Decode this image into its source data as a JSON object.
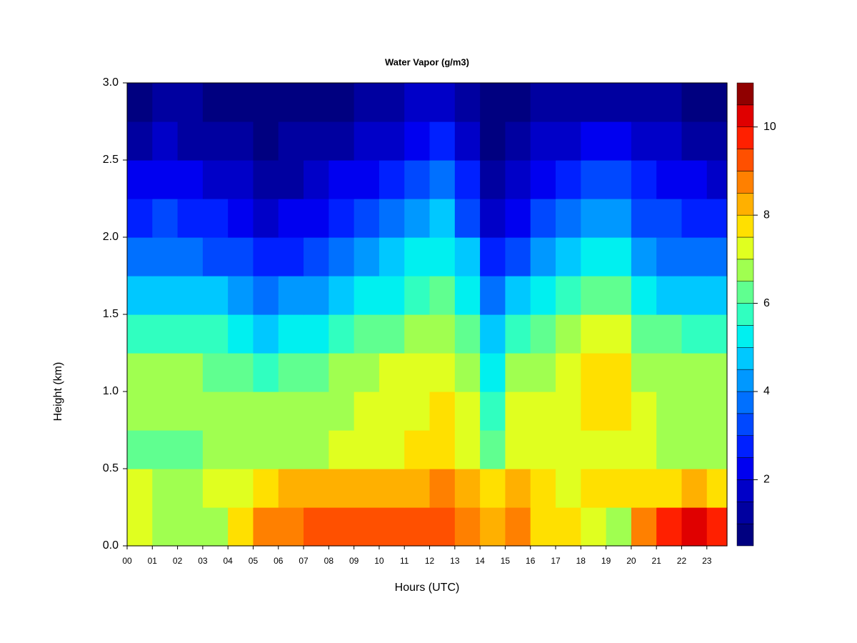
{
  "chart_data": {
    "type": "heatmap",
    "title": "Water Vapor (g/m3)",
    "x_label": "Hours (UTC)",
    "y_label": "Height (km)",
    "x": [
      0,
      1,
      2,
      3,
      4,
      5,
      6,
      7,
      8,
      9,
      10,
      11,
      12,
      13,
      14,
      15,
      16,
      17,
      18,
      19,
      20,
      21,
      22,
      23
    ],
    "y": [
      0,
      0.25,
      0.5,
      0.75,
      1,
      1.25,
      1.5,
      1.75,
      2,
      2.25,
      2.5,
      2.75
    ],
    "z": [
      [
        7.2,
        6.8,
        6.5,
        6.8,
        7.8,
        8.5,
        8.7,
        9.0,
        9.0,
        9.0,
        9.0,
        9.0,
        9.0,
        8.8,
        8.3,
        8.5,
        7.8,
        7.5,
        7.2,
        6.5,
        8.8,
        9.5,
        10.2,
        9.5
      ],
      [
        7.0,
        6.9,
        6.9,
        7.0,
        7.3,
        7.8,
        8.0,
        8.2,
        8.2,
        8.3,
        8.3,
        8.4,
        8.5,
        8.2,
        7.5,
        8.0,
        7.5,
        7.4,
        7.5,
        7.5,
        7.5,
        7.8,
        8.0,
        7.8
      ],
      [
        6.3,
        6.2,
        6.3,
        6.5,
        6.6,
        6.6,
        6.8,
        6.9,
        7.0,
        7.2,
        7.3,
        7.5,
        7.6,
        7.4,
        6.0,
        7.2,
        7.2,
        7.0,
        7.1,
        7.3,
        7.0,
        6.8,
        6.8,
        6.7
      ],
      [
        6.6,
        6.7,
        6.7,
        6.7,
        6.6,
        6.5,
        6.6,
        6.8,
        6.9,
        7.1,
        7.2,
        7.4,
        7.5,
        7.2,
        5.8,
        7.0,
        7.1,
        7.3,
        7.6,
        7.7,
        7.0,
        6.8,
        6.7,
        6.7
      ],
      [
        6.5,
        6.6,
        6.5,
        6.4,
        6.2,
        5.9,
        6.0,
        6.3,
        6.6,
        6.8,
        7.0,
        7.2,
        7.3,
        6.9,
        5.4,
        6.5,
        6.8,
        7.2,
        7.6,
        7.7,
        6.9,
        6.7,
        6.5,
        6.5
      ],
      [
        5.8,
        5.9,
        5.7,
        5.5,
        5.2,
        4.8,
        5.0,
        5.3,
        5.8,
        6.0,
        6.3,
        6.6,
        6.8,
        6.3,
        4.8,
        5.5,
        6.0,
        6.6,
        7.0,
        7.1,
        6.3,
        6.0,
        5.8,
        5.7
      ],
      [
        4.8,
        4.9,
        4.7,
        4.5,
        4.2,
        3.6,
        4.0,
        4.3,
        4.8,
        5.1,
        5.4,
        5.8,
        6.1,
        5.4,
        3.8,
        4.5,
        5.0,
        5.6,
        6.0,
        6.1,
        5.3,
        4.9,
        4.7,
        4.6
      ],
      [
        3.8,
        3.9,
        3.7,
        3.4,
        3.1,
        2.6,
        2.9,
        3.2,
        3.8,
        4.1,
        4.5,
        5.0,
        5.4,
        4.5,
        2.8,
        3.4,
        4.0,
        4.6,
        5.0,
        5.1,
        4.4,
        3.9,
        3.7,
        3.6
      ],
      [
        2.8,
        3.0,
        2.8,
        2.5,
        2.2,
        1.8,
        2.0,
        2.2,
        2.8,
        3.1,
        3.5,
        4.0,
        4.5,
        3.4,
        1.9,
        2.4,
        3.0,
        3.6,
        4.0,
        4.1,
        3.4,
        3.0,
        2.8,
        2.7
      ],
      [
        2.0,
        2.1,
        2.0,
        1.8,
        1.5,
        1.2,
        1.4,
        1.5,
        2.0,
        2.3,
        2.6,
        3.1,
        3.6,
        2.5,
        1.3,
        1.7,
        2.2,
        2.7,
        3.0,
        3.0,
        2.6,
        2.3,
        2.0,
        1.9
      ],
      [
        1.4,
        1.5,
        1.4,
        1.2,
        1.0,
        0.9,
        1.0,
        1.1,
        1.4,
        1.6,
        1.9,
        2.3,
        2.7,
        1.7,
        0.9,
        1.2,
        1.6,
        1.9,
        2.2,
        2.2,
        1.9,
        1.6,
        1.4,
        1.3
      ],
      [
        0.9,
        1.0,
        1.0,
        0.9,
        0.8,
        0.7,
        0.7,
        0.8,
        0.9,
        1.0,
        1.2,
        1.5,
        1.8,
        1.1,
        0.7,
        0.8,
        1.0,
        1.2,
        1.4,
        1.4,
        1.2,
        1.0,
        0.9,
        0.8
      ]
    ],
    "xlim": [
      0,
      23.8
    ],
    "ylim": [
      0,
      3
    ],
    "xticks": [
      {
        "value": 0,
        "label": "00"
      },
      {
        "value": 1,
        "label": "01"
      },
      {
        "value": 2,
        "label": "02"
      },
      {
        "value": 3,
        "label": "03"
      },
      {
        "value": 4,
        "label": "04"
      },
      {
        "value": 5,
        "label": "05"
      },
      {
        "value": 6,
        "label": "06"
      },
      {
        "value": 7,
        "label": "07"
      },
      {
        "value": 8,
        "label": "08"
      },
      {
        "value": 9,
        "label": "09"
      },
      10,
      11,
      12,
      13,
      14,
      15,
      16,
      17,
      18,
      19,
      20,
      21,
      22,
      23
    ],
    "yticks": [
      {
        "value": 0,
        "label": "0.0"
      },
      0.5,
      {
        "value": 1,
        "label": "1.0"
      },
      1.5,
      {
        "value": 2,
        "label": "2.0"
      },
      2.5,
      {
        "value": 3,
        "label": "3.0"
      }
    ],
    "levels": [
      0.5,
      1,
      1.5,
      2,
      2.5,
      3,
      3.5,
      4,
      4.5,
      5,
      5.5,
      6,
      6.5,
      7,
      7.5,
      8,
      8.5,
      9,
      9.5,
      10,
      10.5,
      11
    ],
    "colors": [
      "#000080",
      "#0000a0",
      "#0000c8",
      "#0000f0",
      "#0020ff",
      "#0048ff",
      "#0070ff",
      "#0098ff",
      "#00c8ff",
      "#00f0f0",
      "#30ffc0",
      "#60ff90",
      "#a0ff50",
      "#e0ff20",
      "#ffe000",
      "#ffb000",
      "#ff8000",
      "#ff5000",
      "#ff2000",
      "#e00000",
      "#900000"
    ],
    "zticks": [
      2,
      4,
      6,
      8,
      10
    ]
  }
}
